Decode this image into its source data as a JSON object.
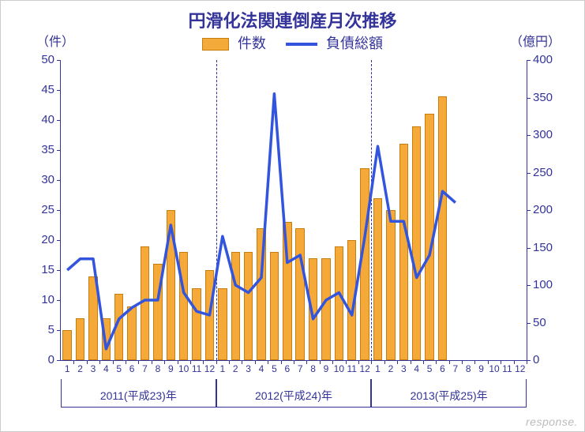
{
  "title": "円滑化法関連倒産月次推移",
  "y_left_label": "（件）",
  "y_right_label": "（億円）",
  "legend": {
    "bar_label": "件数",
    "line_label": "負債総額",
    "bar_color": "#f4a938",
    "bar_border": "#c77e10",
    "line_color": "#3355dd"
  },
  "axis_color": "#333399",
  "text_color": "#333399",
  "y_left": {
    "min": 0,
    "max": 50,
    "step": 5
  },
  "y_right": {
    "min": 0,
    "max": 400,
    "step": 50
  },
  "x_months": [
    1,
    2,
    3,
    4,
    5,
    6,
    7,
    8,
    9,
    10,
    11,
    12,
    1,
    2,
    3,
    4,
    5,
    6,
    7,
    8,
    9,
    10,
    11,
    12,
    1,
    2,
    3,
    4,
    5,
    6,
    7,
    8,
    9,
    10,
    11,
    12
  ],
  "years": [
    {
      "label": "2011(平成23)年",
      "span": [
        0,
        12
      ]
    },
    {
      "label": "2012(平成24)年",
      "span": [
        12,
        24
      ]
    },
    {
      "label": "2013(平成25)年",
      "span": [
        24,
        36
      ]
    }
  ],
  "bar_values": [
    5,
    7,
    14,
    7,
    11,
    9,
    19,
    16,
    25,
    18,
    12,
    15,
    12,
    18,
    18,
    22,
    18,
    23,
    22,
    17,
    17,
    19,
    20,
    32,
    27,
    25,
    36,
    39,
    41,
    44,
    null,
    null,
    null,
    null,
    null,
    null
  ],
  "line_values": [
    120,
    135,
    135,
    15,
    55,
    70,
    80,
    80,
    180,
    90,
    65,
    60,
    165,
    100,
    90,
    110,
    355,
    130,
    140,
    55,
    80,
    90,
    60,
    165,
    285,
    185,
    185,
    110,
    140,
    225,
    210,
    null,
    null,
    null,
    null,
    null
  ],
  "watermark": "response."
}
